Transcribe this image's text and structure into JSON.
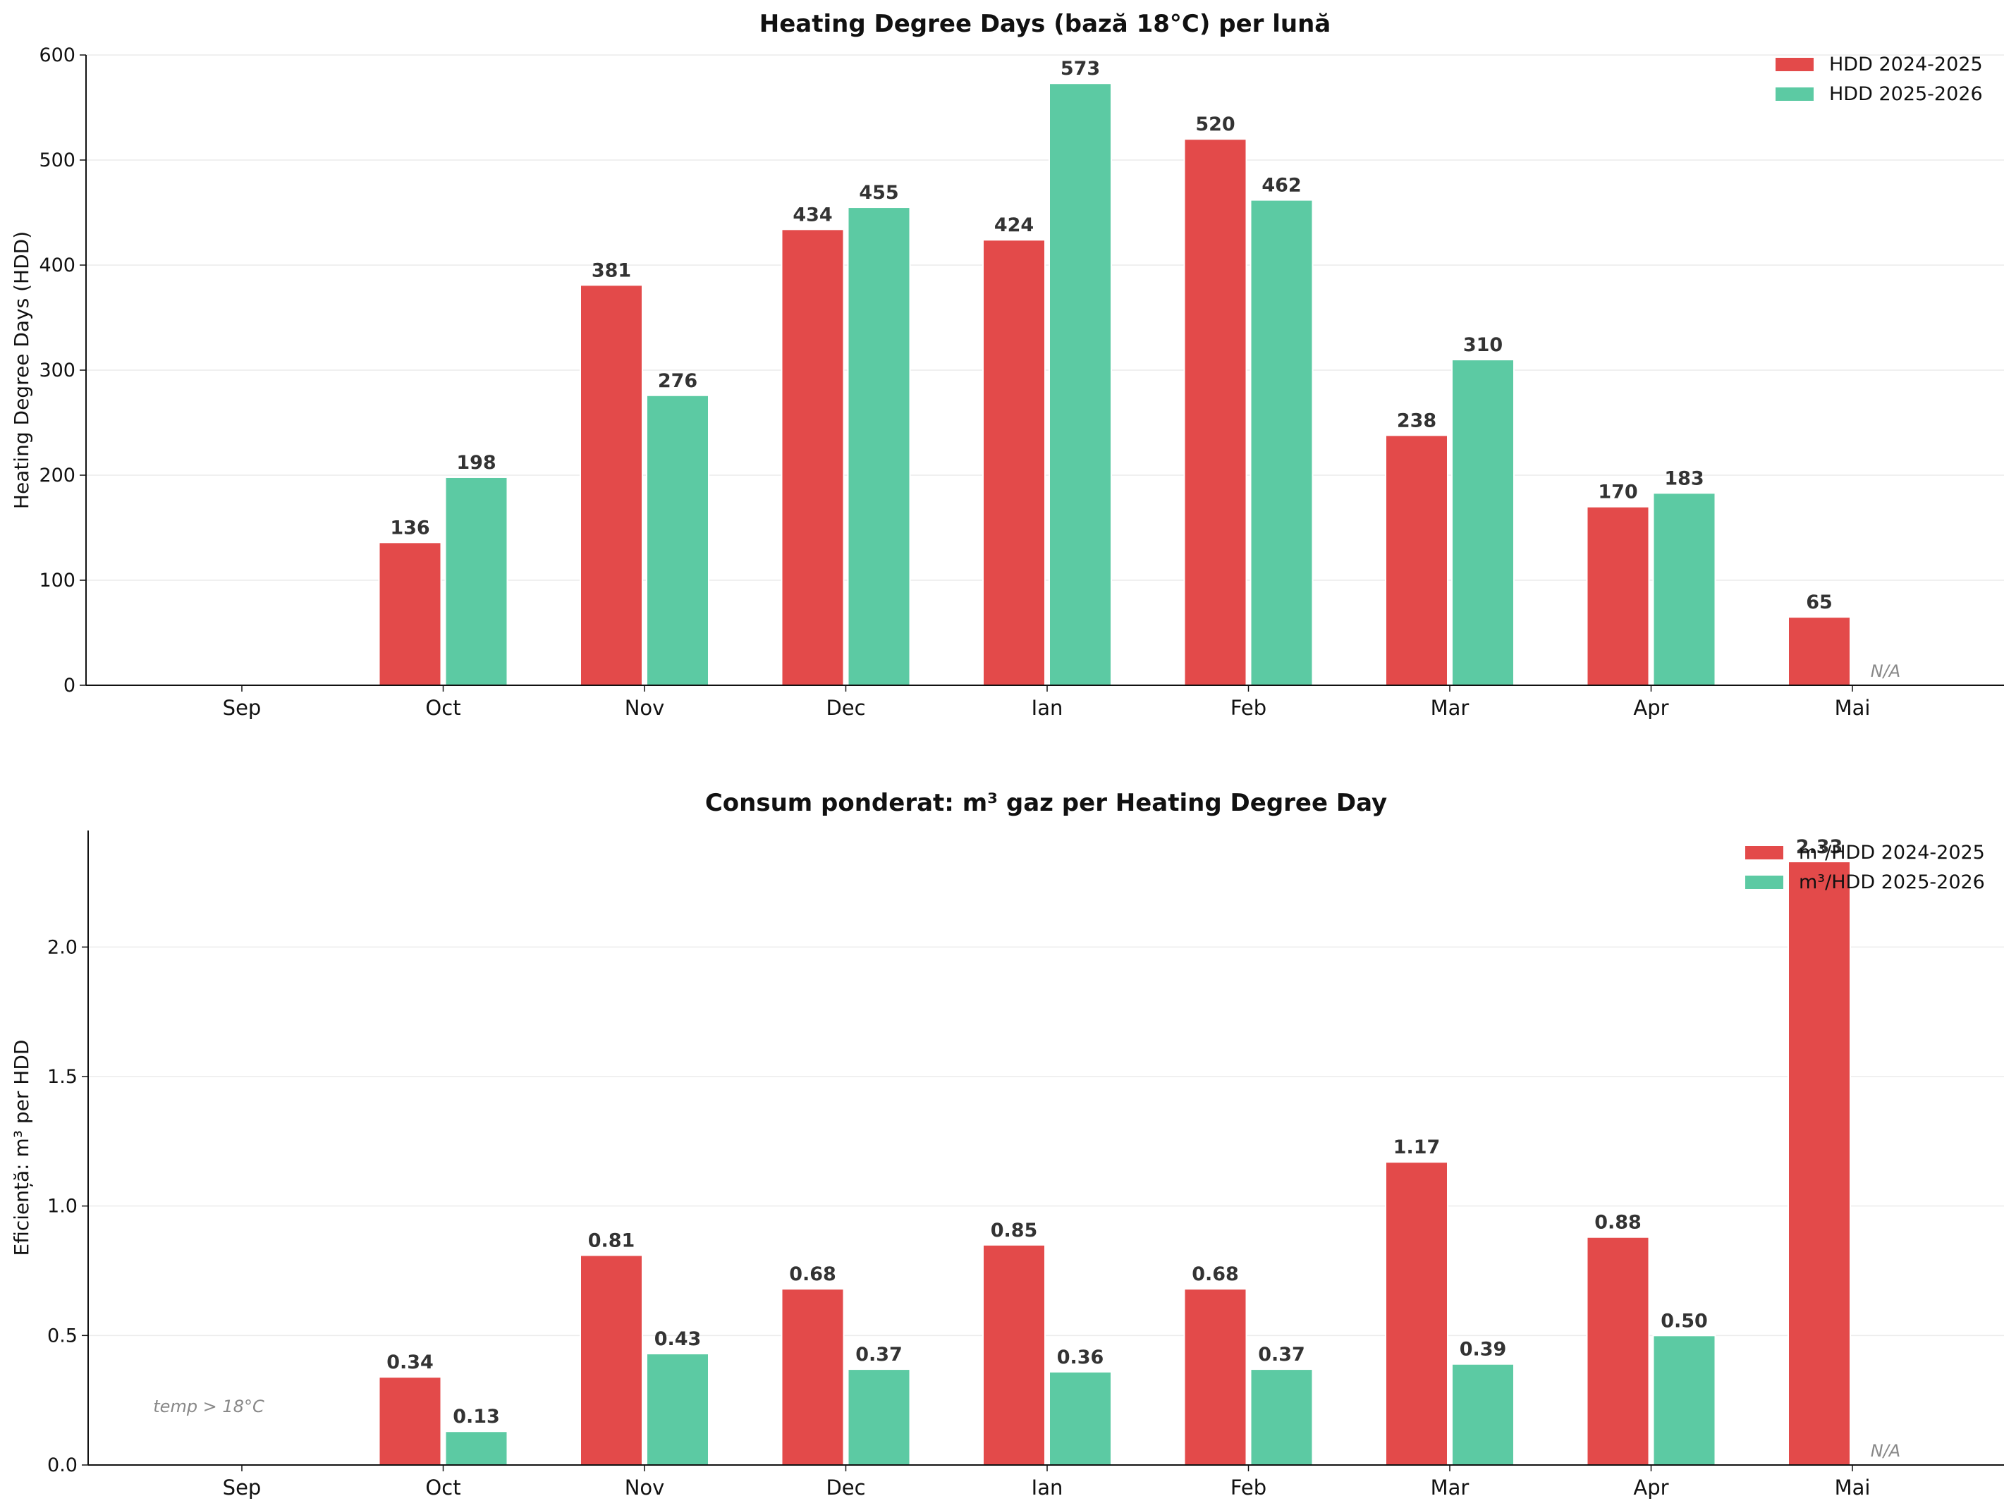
{
  "chart_data": [
    {
      "type": "bar",
      "title": "Heating Degree Days (bază 18°C) per lună",
      "xlabel": "",
      "ylabel": "Heating Degree Days (HDD)",
      "ylim": [
        0,
        600
      ],
      "yticks": [
        0,
        100,
        200,
        300,
        400,
        500,
        600
      ],
      "yticks_labels": [
        "0",
        "100",
        "200",
        "300",
        "400",
        "500",
        "600"
      ],
      "grid": "horizontal",
      "legend_position": "top-right",
      "categories": [
        "Sep",
        "Oct",
        "Nov",
        "Dec",
        "Ian",
        "Feb",
        "Mar",
        "Apr",
        "Mai"
      ],
      "series": [
        {
          "name": "HDD 2024-2025",
          "color": "#e34a4a",
          "values": [
            0,
            136,
            381,
            434,
            424,
            520,
            238,
            170,
            65
          ],
          "labels": [
            "",
            "136",
            "381",
            "434",
            "424",
            "520",
            "238",
            "170",
            "65"
          ]
        },
        {
          "name": "HDD 2025-2026",
          "color": "#5ccaa3",
          "values": [
            0,
            198,
            276,
            455,
            573,
            462,
            310,
            183,
            0
          ],
          "labels": [
            "",
            "198",
            "276",
            "455",
            "573",
            "462",
            "310",
            "183",
            ""
          ]
        }
      ],
      "annotations": [
        {
          "text": "N/A",
          "category": "Mai",
          "series": 1
        }
      ]
    },
    {
      "type": "bar",
      "title": "Consum ponderat: m³ gaz per Heating Degree Day",
      "xlabel": "",
      "ylabel": "Eficiență: m³ per HDD",
      "ylim": [
        0,
        2.45
      ],
      "yticks": [
        0,
        0.5,
        1.0,
        1.5,
        2.0
      ],
      "yticks_labels": [
        "0.0",
        "0.5",
        "1.0",
        "1.5",
        "2.0"
      ],
      "grid": "horizontal",
      "legend_position": "top-right",
      "categories": [
        "Sep",
        "Oct",
        "Nov",
        "Dec",
        "Ian",
        "Feb",
        "Mar",
        "Apr",
        "Mai"
      ],
      "series": [
        {
          "name": "m³/HDD 2024-2025",
          "color": "#e34a4a",
          "values": [
            0,
            0.34,
            0.81,
            0.68,
            0.85,
            0.68,
            1.17,
            0.88,
            2.33
          ],
          "labels": [
            "",
            "0.34",
            "0.81",
            "0.68",
            "0.85",
            "0.68",
            "1.17",
            "0.88",
            "2.33"
          ]
        },
        {
          "name": "m³/HDD 2025-2026",
          "color": "#5ccaa3",
          "values": [
            0,
            0.13,
            0.43,
            0.37,
            0.36,
            0.37,
            0.39,
            0.5,
            0
          ],
          "labels": [
            "",
            "0.13",
            "0.43",
            "0.37",
            "0.36",
            "0.37",
            "0.39",
            "0.50",
            ""
          ]
        }
      ],
      "annotations": [
        {
          "text": "temp > 18°C",
          "category": "Sep",
          "series": 0
        },
        {
          "text": "N/A",
          "category": "Mai",
          "series": 1
        }
      ]
    }
  ]
}
